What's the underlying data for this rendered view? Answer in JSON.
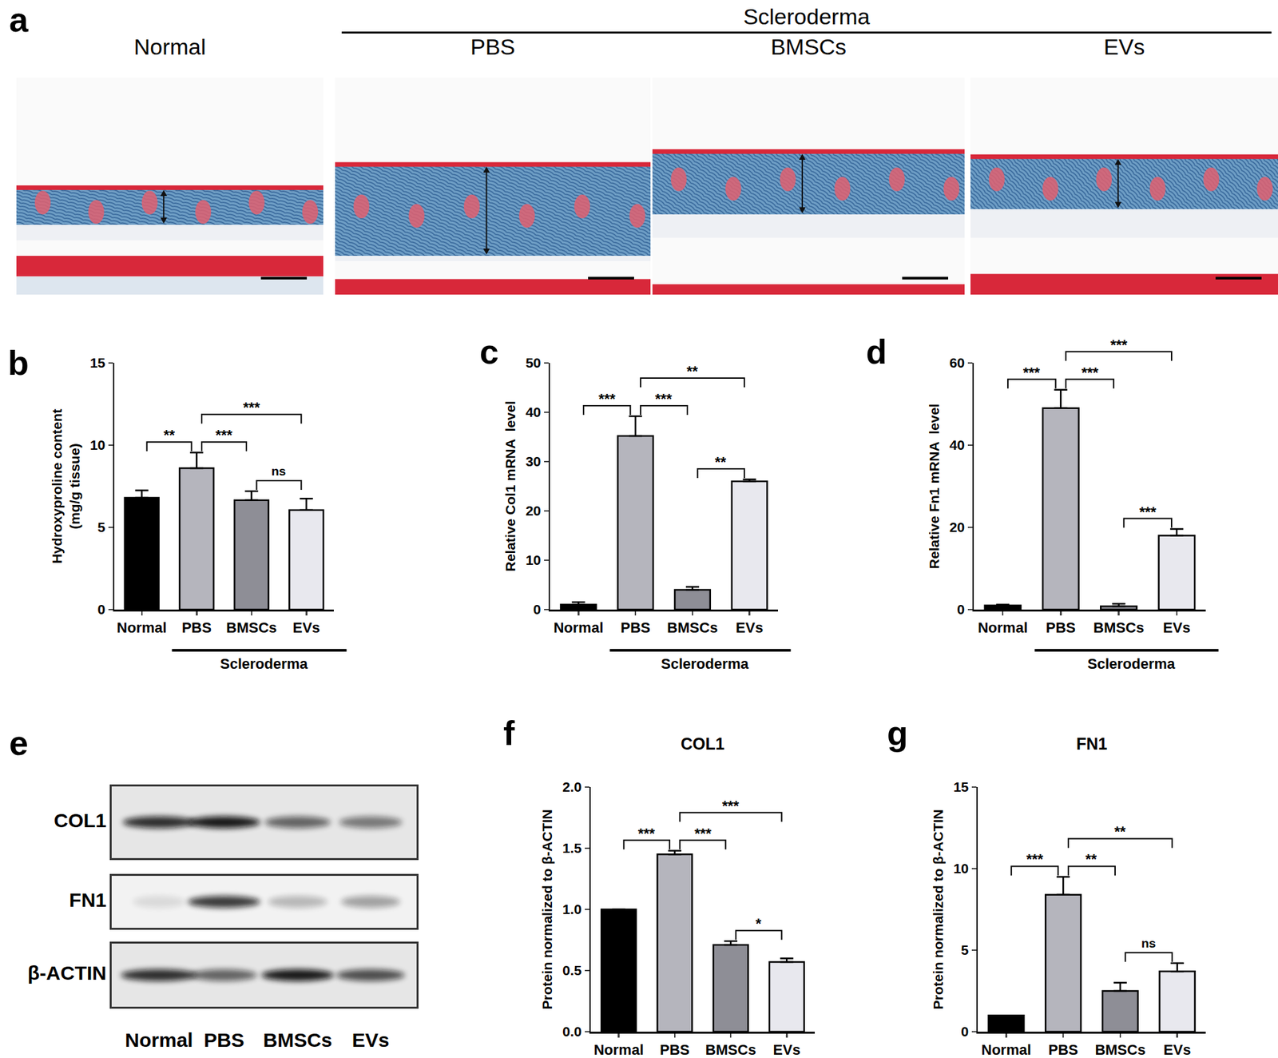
{
  "figure": {
    "panel_a": {
      "letter": "a",
      "group_label": "Scleroderma",
      "images": [
        "Normal",
        "PBS",
        "BMSCs",
        "EVs"
      ]
    },
    "panel_e": {
      "letter": "e",
      "rows": [
        "COL1",
        "FN1",
        "β-ACTIN"
      ],
      "lanes": [
        "Normal",
        "PBS",
        "BMSCs",
        "EVs"
      ]
    }
  },
  "chart_data": [
    {
      "letter": "b",
      "type": "bar",
      "ylabel": "Hydroxyproline content\n(mg/g tissue)",
      "categories": [
        "Normal",
        "PBS",
        "BMSCs",
        "EVs"
      ],
      "values": [
        6.8,
        8.6,
        6.65,
        6.05
      ],
      "errors": [
        0.45,
        0.95,
        0.55,
        0.7
      ],
      "colors": [
        "#000000",
        "#b5b5bd",
        "#8e8e96",
        "#e8e8ee"
      ],
      "ylim": [
        0,
        15
      ],
      "yticks": [
        0,
        5,
        10,
        15
      ],
      "group_label": "Scleroderma",
      "comparisons": [
        {
          "from": "Normal",
          "to": "PBS",
          "label": "**"
        },
        {
          "from": "PBS",
          "to": "BMSCs",
          "label": "***"
        },
        {
          "from": "PBS",
          "to": "EVs",
          "label": "***"
        },
        {
          "from": "BMSCs",
          "to": "EVs",
          "label": "ns"
        }
      ]
    },
    {
      "letter": "c",
      "type": "bar",
      "ylabel": "Relative Col1 mRNA  level",
      "categories": [
        "Normal",
        "PBS",
        "BMSCs",
        "EVs"
      ],
      "values": [
        1.0,
        35.2,
        4.0,
        26.0
      ],
      "errors": [
        0.5,
        4.0,
        0.6,
        0.4
      ],
      "colors": [
        "#000000",
        "#b5b5bd",
        "#8e8e96",
        "#e8e8ee"
      ],
      "ylim": [
        0,
        50
      ],
      "yticks": [
        0,
        10,
        20,
        30,
        40,
        50
      ],
      "group_label": "Scleroderma",
      "comparisons": [
        {
          "from": "Normal",
          "to": "PBS",
          "label": "***"
        },
        {
          "from": "PBS",
          "to": "BMSCs",
          "label": "***"
        },
        {
          "from": "PBS",
          "to": "EVs",
          "label": "**"
        },
        {
          "from": "BMSCs",
          "to": "EVs",
          "label": "**"
        }
      ]
    },
    {
      "letter": "d",
      "type": "bar",
      "ylabel": "Relative Fn1 mRNA  level",
      "categories": [
        "Normal",
        "PBS",
        "BMSCs",
        "EVs"
      ],
      "values": [
        1.0,
        49.0,
        0.8,
        18.0
      ],
      "errors": [
        0.2,
        4.5,
        0.6,
        1.6
      ],
      "colors": [
        "#000000",
        "#b5b5bd",
        "#8e8e96",
        "#e8e8ee"
      ],
      "ylim": [
        0,
        60
      ],
      "yticks": [
        0,
        20,
        40,
        60
      ],
      "group_label": "Scleroderma",
      "comparisons": [
        {
          "from": "Normal",
          "to": "PBS",
          "label": "***"
        },
        {
          "from": "PBS",
          "to": "BMSCs",
          "label": "***"
        },
        {
          "from": "PBS",
          "to": "EVs",
          "label": "***"
        },
        {
          "from": "BMSCs",
          "to": "EVs",
          "label": "***"
        }
      ]
    },
    {
      "letter": "f",
      "type": "bar",
      "title": "COL1",
      "ylabel": "Protein normalized to β-ACTIN",
      "categories": [
        "Normal",
        "PBS",
        "BMSCs",
        "EVs"
      ],
      "values": [
        1.0,
        1.45,
        0.71,
        0.57
      ],
      "errors": [
        0,
        0.03,
        0.03,
        0.03
      ],
      "colors": [
        "#000000",
        "#b5b5bd",
        "#8e8e96",
        "#e8e8ee"
      ],
      "ylim": [
        0,
        2
      ],
      "yticks": [
        {
          "value": 0,
          "label": "0.0"
        },
        {
          "value": 0.5,
          "label": "0.5"
        },
        {
          "value": 1,
          "label": "1.0"
        },
        {
          "value": 1.5,
          "label": "1.5"
        },
        {
          "value": 2,
          "label": "2.0"
        }
      ],
      "comparisons": [
        {
          "from": "Normal",
          "to": "PBS",
          "label": "***"
        },
        {
          "from": "PBS",
          "to": "BMSCs",
          "label": "***"
        },
        {
          "from": "PBS",
          "to": "EVs",
          "label": "***"
        },
        {
          "from": "BMSCs",
          "to": "EVs",
          "label": "*"
        }
      ]
    },
    {
      "letter": "g",
      "type": "bar",
      "title": "FN1",
      "ylabel": "Protein normalized to β-ACTIN",
      "categories": [
        "Normal",
        "PBS",
        "BMSCs",
        "EVs"
      ],
      "values": [
        1.0,
        8.4,
        2.5,
        3.7
      ],
      "errors": [
        0,
        1.1,
        0.5,
        0.5
      ],
      "colors": [
        "#000000",
        "#b5b5bd",
        "#8e8e96",
        "#e8e8ee"
      ],
      "ylim": [
        0,
        15
      ],
      "yticks": [
        0,
        5,
        10,
        15
      ],
      "comparisons": [
        {
          "from": "Normal",
          "to": "PBS",
          "label": "***"
        },
        {
          "from": "PBS",
          "to": "BMSCs",
          "label": "**"
        },
        {
          "from": "PBS",
          "to": "EVs",
          "label": "**"
        },
        {
          "from": "BMSCs",
          "to": "EVs",
          "label": "ns"
        }
      ]
    }
  ]
}
